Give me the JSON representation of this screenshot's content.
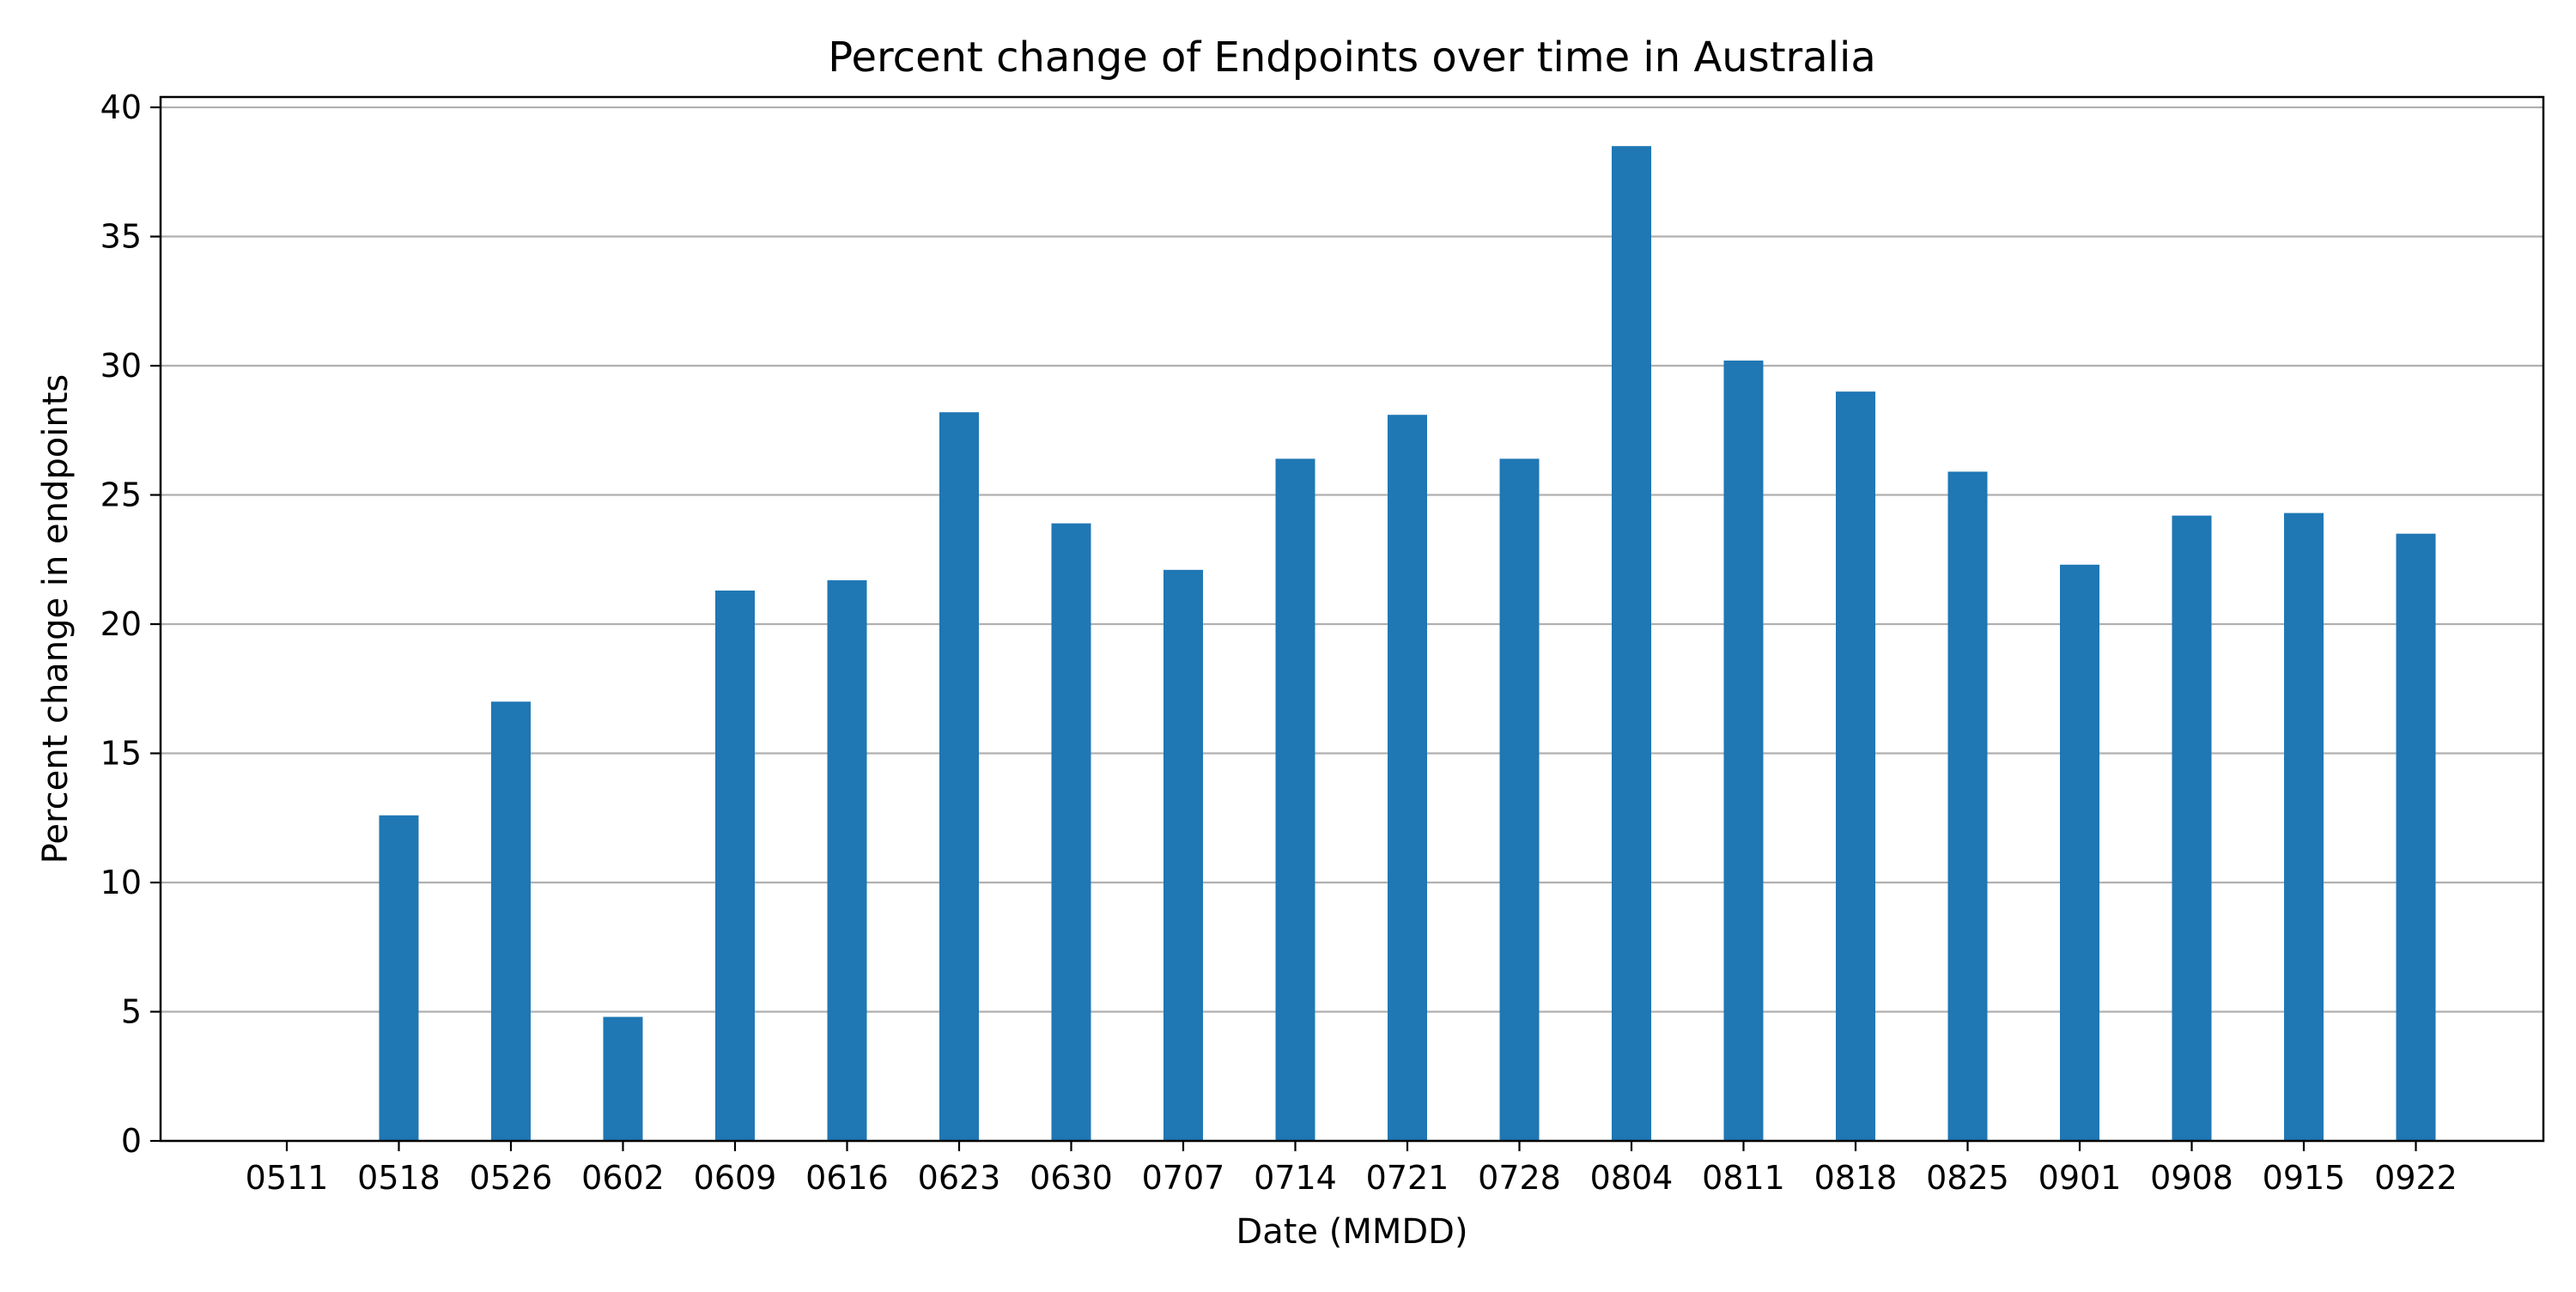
{
  "chart_data": {
    "type": "bar",
    "title": "Percent change of Endpoints over time in Australia",
    "xlabel": "Date (MMDD)",
    "ylabel": "Percent change in endpoints",
    "categories": [
      "0511",
      "0518",
      "0526",
      "0602",
      "0609",
      "0616",
      "0623",
      "0630",
      "0707",
      "0714",
      "0721",
      "0728",
      "0804",
      "0811",
      "0818",
      "0825",
      "0901",
      "0908",
      "0915",
      "0922"
    ],
    "values": [
      0,
      12.6,
      17.0,
      4.8,
      21.3,
      21.7,
      28.2,
      23.9,
      22.1,
      26.4,
      28.1,
      26.4,
      38.5,
      30.2,
      29.0,
      25.9,
      22.3,
      24.2,
      24.3,
      23.5
    ],
    "ylim": [
      0,
      40.4
    ],
    "yticks": [
      0,
      5,
      10,
      15,
      20,
      25,
      30,
      35,
      40
    ],
    "grid": "horizontal",
    "legend": "none",
    "bar_color": "#1f77b4",
    "grid_color": "#b0b0b0"
  }
}
